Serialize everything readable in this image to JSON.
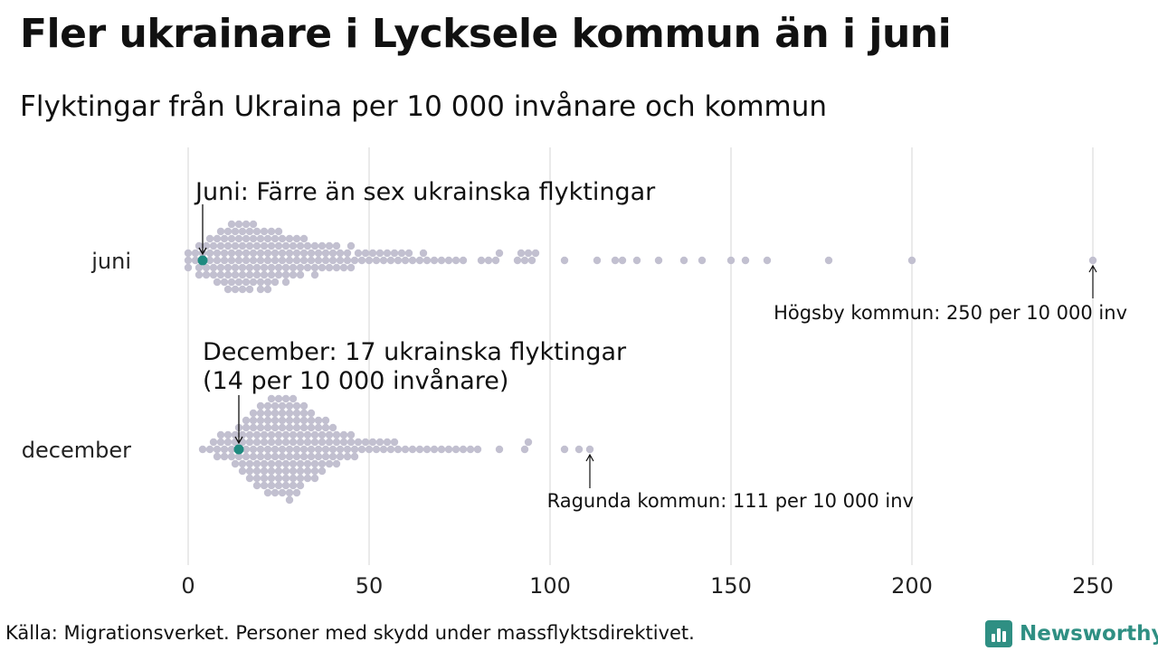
{
  "header": {
    "title": "Fler ukrainare i Lycksele kommun än i juni",
    "subtitle": "Flyktingar från Ukraina per 10 000 invånare och kommun"
  },
  "footer": {
    "source": "Källa: Migrationsverket. Personer med skydd under massflyktsdirektivet.",
    "brand_name": "Newsworthy",
    "brand_color": "#2f8f83"
  },
  "chart_data": {
    "type": "scatter",
    "title": "Fler ukrainare i Lycksele kommun än i juni",
    "subtitle": "Flyktingar från Ukraina per 10 000 invånare och kommun",
    "categories": [
      "juni",
      "december"
    ],
    "xlim": [
      0,
      260
    ],
    "x_ticks": [
      0,
      50,
      100,
      150,
      200,
      250
    ],
    "grid": true,
    "point_color": "#c2c0d0",
    "highlight_color": "#1f8a80",
    "series": [
      {
        "category": "juni",
        "values": [
          0,
          0,
          0,
          2,
          2,
          3,
          3,
          3,
          4,
          4,
          5,
          5,
          5,
          6,
          6,
          6,
          7,
          7,
          7,
          8,
          8,
          8,
          8,
          9,
          9,
          9,
          9,
          10,
          10,
          10,
          10,
          11,
          11,
          11,
          11,
          11,
          12,
          12,
          12,
          12,
          12,
          13,
          13,
          13,
          13,
          13,
          14,
          14,
          14,
          14,
          14,
          15,
          15,
          15,
          15,
          15,
          16,
          16,
          16,
          16,
          16,
          17,
          17,
          17,
          17,
          17,
          18,
          18,
          18,
          18,
          18,
          19,
          19,
          19,
          19,
          20,
          20,
          20,
          20,
          20,
          21,
          21,
          21,
          21,
          22,
          22,
          22,
          22,
          22,
          23,
          23,
          23,
          23,
          24,
          24,
          24,
          24,
          25,
          25,
          25,
          25,
          26,
          26,
          26,
          27,
          27,
          27,
          27,
          28,
          28,
          28,
          29,
          29,
          29,
          30,
          30,
          30,
          31,
          31,
          31,
          32,
          32,
          32,
          33,
          33,
          34,
          34,
          35,
          35,
          35,
          36,
          36,
          37,
          37,
          38,
          38,
          39,
          39,
          40,
          40,
          41,
          41,
          42,
          42,
          43,
          44,
          44,
          45,
          45,
          46,
          47,
          48,
          49,
          50,
          51,
          52,
          53,
          54,
          55,
          56,
          57,
          58,
          59,
          60,
          61,
          62,
          64,
          65,
          66,
          68,
          70,
          72,
          74,
          76,
          81,
          83,
          85,
          86,
          91,
          92,
          93,
          94,
          95,
          96,
          104,
          113,
          118,
          120,
          124,
          130,
          137,
          142,
          150,
          154,
          160,
          177,
          200,
          250
        ],
        "highlight": {
          "value": 4,
          "label": "Juni: Färre än sex ukrainska flyktingar"
        },
        "max_annotation": {
          "value": 250,
          "label": "Högsby kommun: 250 per 10 000 inv"
        }
      },
      {
        "category": "december",
        "values": [
          4,
          6,
          7,
          8,
          8,
          9,
          9,
          10,
          10,
          11,
          11,
          12,
          12,
          13,
          13,
          13,
          14,
          14,
          14,
          15,
          15,
          15,
          15,
          16,
          16,
          16,
          16,
          17,
          17,
          17,
          17,
          17,
          18,
          18,
          18,
          18,
          18,
          19,
          19,
          19,
          19,
          19,
          19,
          20,
          20,
          20,
          20,
          20,
          20,
          21,
          21,
          21,
          21,
          21,
          21,
          22,
          22,
          22,
          22,
          22,
          22,
          22,
          23,
          23,
          23,
          23,
          23,
          23,
          23,
          24,
          24,
          24,
          24,
          24,
          24,
          24,
          25,
          25,
          25,
          25,
          25,
          25,
          25,
          26,
          26,
          26,
          26,
          26,
          26,
          26,
          27,
          27,
          27,
          27,
          27,
          27,
          27,
          28,
          28,
          28,
          28,
          28,
          28,
          28,
          28,
          29,
          29,
          29,
          29,
          29,
          29,
          29,
          30,
          30,
          30,
          30,
          30,
          30,
          30,
          31,
          31,
          31,
          31,
          31,
          31,
          32,
          32,
          32,
          32,
          32,
          32,
          33,
          33,
          33,
          33,
          33,
          34,
          34,
          34,
          34,
          34,
          35,
          35,
          35,
          35,
          35,
          36,
          36,
          36,
          36,
          37,
          37,
          37,
          37,
          38,
          38,
          38,
          38,
          39,
          39,
          39,
          40,
          40,
          40,
          41,
          41,
          41,
          42,
          42,
          43,
          43,
          44,
          44,
          45,
          45,
          46,
          46,
          47,
          48,
          49,
          50,
          51,
          52,
          53,
          54,
          55,
          56,
          57,
          58,
          60,
          62,
          64,
          66,
          68,
          70,
          72,
          74,
          76,
          78,
          80,
          86,
          93,
          94,
          104,
          108,
          111
        ],
        "highlight": {
          "value": 14,
          "label_line1": "December: 17 ukrainska flyktingar",
          "label_line2": "(14 per 10 000 invånare)"
        },
        "max_annotation": {
          "value": 111,
          "label": "Ragunda kommun: 111 per 10 000 inv"
        }
      }
    ]
  }
}
